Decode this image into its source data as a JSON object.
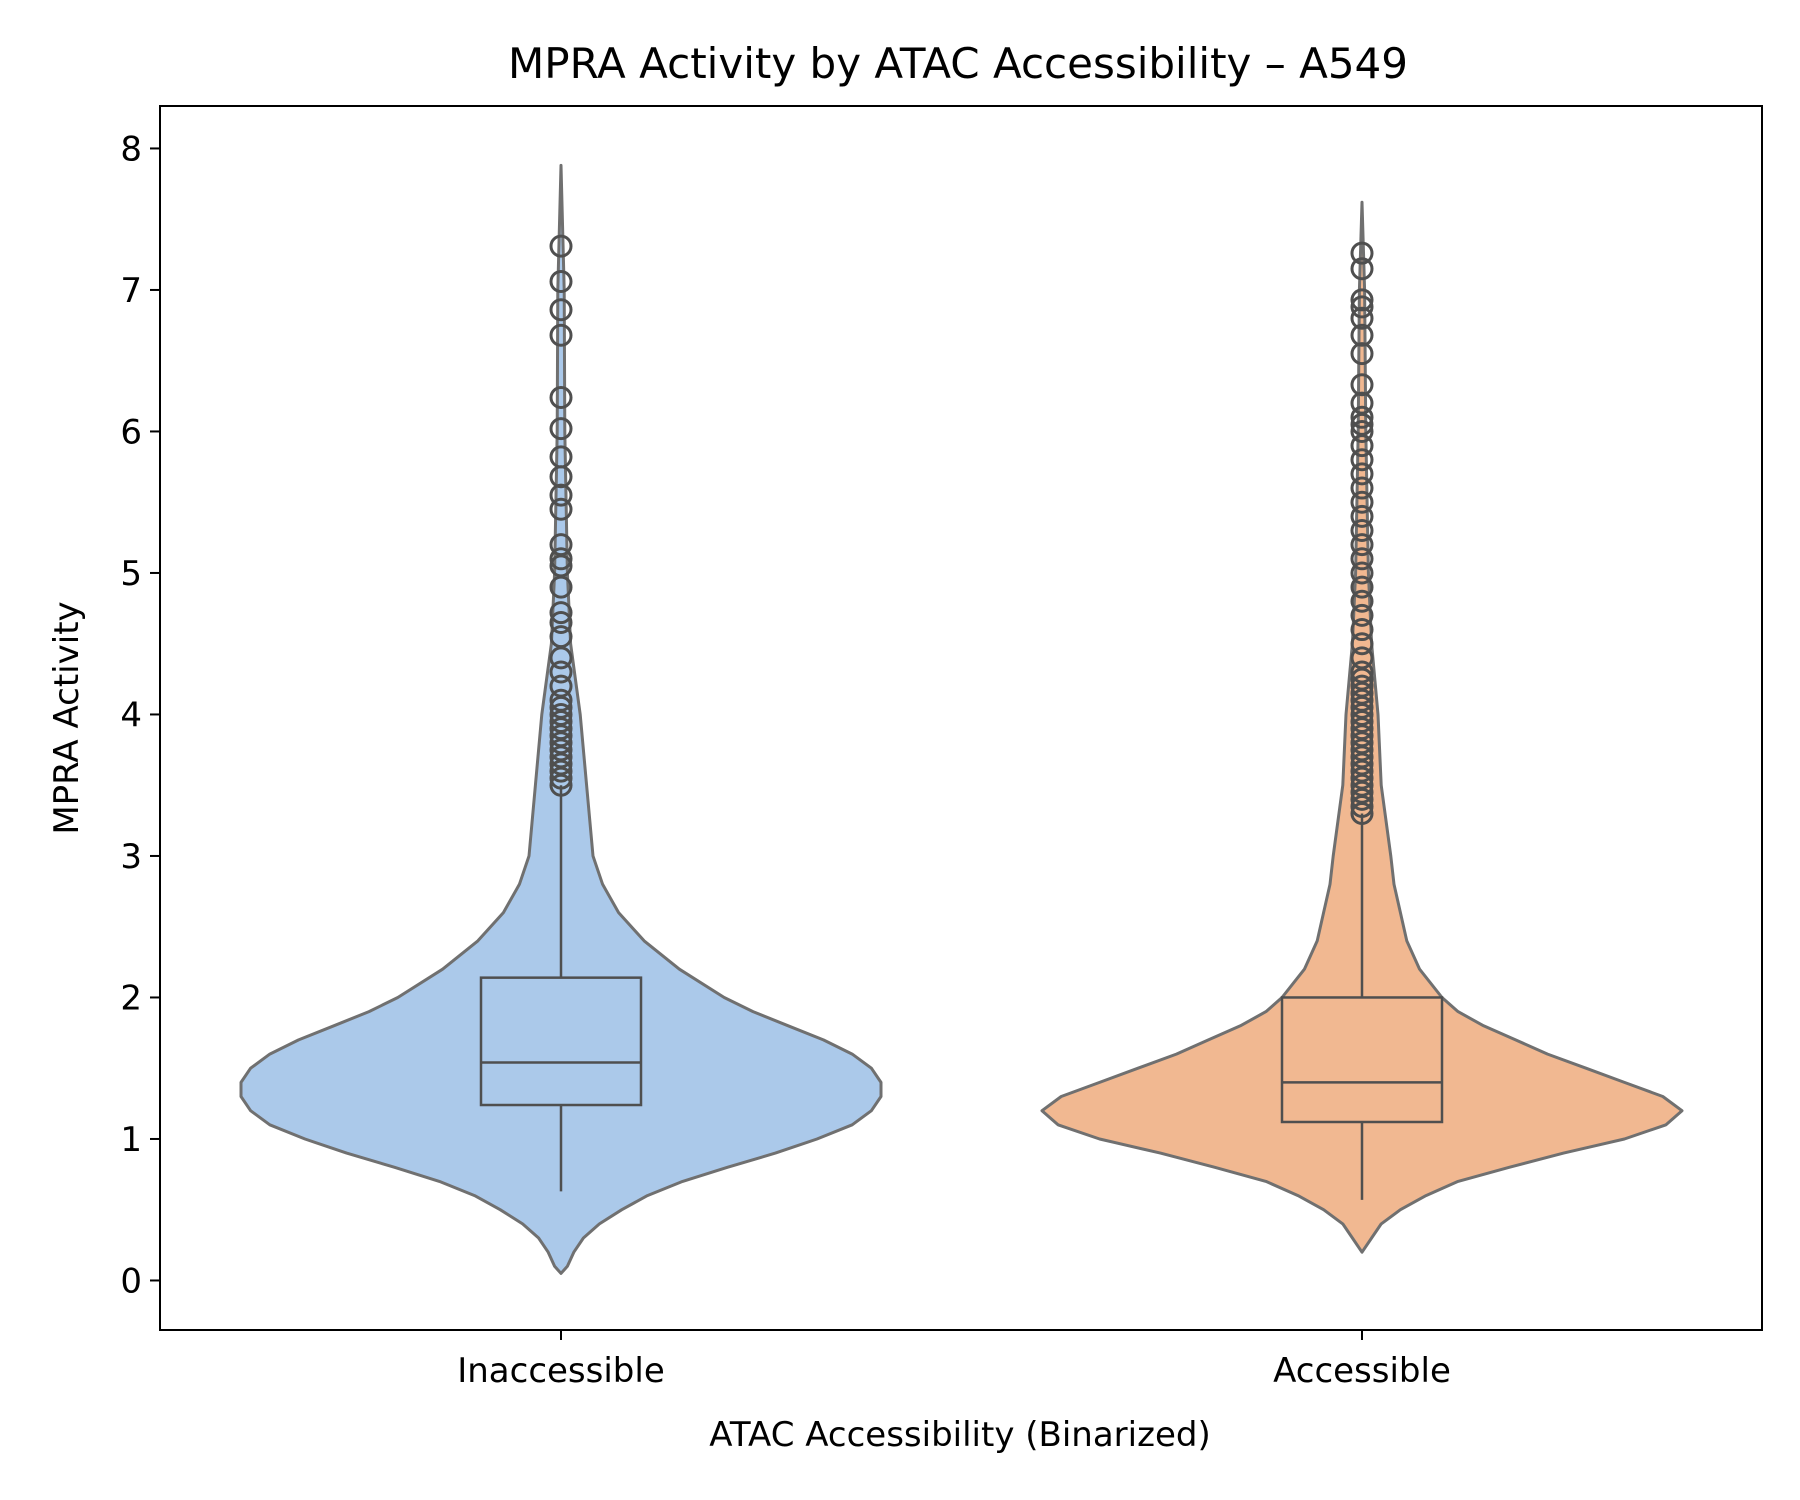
{
  "chart_data": {
    "type": "violin",
    "title": "MPRA Activity by ATAC Accessibility – A549",
    "xlabel": "ATAC Accessibility (Binarized)",
    "ylabel": "MPRA Activity",
    "ylim": [
      -0.35,
      8.3
    ],
    "yticks": [
      0,
      1,
      2,
      3,
      4,
      5,
      6,
      7,
      8
    ],
    "ytick_labels": [
      "0",
      "1",
      "2",
      "3",
      "4",
      "5",
      "6",
      "7",
      "8"
    ],
    "categories": [
      "Inaccessible",
      "Accessible"
    ],
    "grid": false,
    "legend": "none",
    "groups": [
      {
        "category": "Inaccessible",
        "color": "#abc9ea",
        "violin_min": 0.05,
        "violin_max": 7.88,
        "density_profile": [
          [
            0.05,
            0.0
          ],
          [
            0.1,
            0.02
          ],
          [
            0.2,
            0.04
          ],
          [
            0.3,
            0.07
          ],
          [
            0.4,
            0.12
          ],
          [
            0.5,
            0.19
          ],
          [
            0.6,
            0.27
          ],
          [
            0.7,
            0.38
          ],
          [
            0.8,
            0.52
          ],
          [
            0.9,
            0.67
          ],
          [
            1.0,
            0.8
          ],
          [
            1.1,
            0.91
          ],
          [
            1.2,
            0.97
          ],
          [
            1.3,
            1.0
          ],
          [
            1.4,
            1.0
          ],
          [
            1.5,
            0.97
          ],
          [
            1.6,
            0.91
          ],
          [
            1.7,
            0.82
          ],
          [
            1.8,
            0.71
          ],
          [
            1.9,
            0.6
          ],
          [
            2.0,
            0.51
          ],
          [
            2.2,
            0.37
          ],
          [
            2.4,
            0.26
          ],
          [
            2.6,
            0.18
          ],
          [
            2.8,
            0.13
          ],
          [
            3.0,
            0.1
          ],
          [
            3.5,
            0.08
          ],
          [
            4.0,
            0.06
          ],
          [
            4.5,
            0.03
          ],
          [
            5.0,
            0.02
          ],
          [
            6.0,
            0.012
          ],
          [
            7.0,
            0.01
          ],
          [
            7.88,
            0.0
          ]
        ],
        "box": {
          "q1": 1.24,
          "median": 1.54,
          "q3": 2.14,
          "whisker_low": 0.63,
          "whisker_high": 3.5
        },
        "outliers": [
          3.5,
          3.55,
          3.6,
          3.65,
          3.7,
          3.75,
          3.8,
          3.85,
          3.9,
          3.95,
          4.0,
          4.05,
          4.1,
          4.2,
          4.3,
          4.4,
          4.55,
          4.65,
          4.72,
          4.9,
          5.05,
          5.1,
          5.2,
          5.45,
          5.55,
          5.68,
          5.82,
          6.02,
          6.24,
          6.68,
          6.86,
          7.06,
          7.31
        ]
      },
      {
        "category": "Accessible",
        "color": "#f1b891",
        "violin_min": 0.2,
        "violin_max": 7.62,
        "density_profile": [
          [
            0.2,
            0.0
          ],
          [
            0.3,
            0.03
          ],
          [
            0.4,
            0.06
          ],
          [
            0.5,
            0.12
          ],
          [
            0.6,
            0.2
          ],
          [
            0.7,
            0.3
          ],
          [
            0.8,
            0.46
          ],
          [
            0.9,
            0.63
          ],
          [
            1.0,
            0.82
          ],
          [
            1.1,
            0.95
          ],
          [
            1.2,
            1.0
          ],
          [
            1.3,
            0.94
          ],
          [
            1.4,
            0.82
          ],
          [
            1.5,
            0.7
          ],
          [
            1.6,
            0.58
          ],
          [
            1.7,
            0.48
          ],
          [
            1.8,
            0.38
          ],
          [
            1.9,
            0.3
          ],
          [
            2.0,
            0.25
          ],
          [
            2.2,
            0.18
          ],
          [
            2.4,
            0.14
          ],
          [
            2.6,
            0.12
          ],
          [
            2.8,
            0.1
          ],
          [
            3.0,
            0.09
          ],
          [
            3.5,
            0.06
          ],
          [
            4.0,
            0.05
          ],
          [
            4.5,
            0.03
          ],
          [
            5.0,
            0.02
          ],
          [
            6.0,
            0.012
          ],
          [
            7.0,
            0.008
          ],
          [
            7.62,
            0.0
          ]
        ],
        "box": {
          "q1": 1.12,
          "median": 1.4,
          "q3": 2.0,
          "whisker_low": 0.57,
          "whisker_high": 3.3
        },
        "outliers": [
          3.3,
          3.35,
          3.4,
          3.45,
          3.5,
          3.55,
          3.6,
          3.65,
          3.7,
          3.75,
          3.8,
          3.85,
          3.9,
          3.95,
          4.0,
          4.05,
          4.1,
          4.15,
          4.2,
          4.25,
          4.3,
          4.4,
          4.5,
          4.6,
          4.7,
          4.8,
          4.9,
          5.0,
          5.1,
          5.2,
          5.3,
          5.4,
          5.5,
          5.6,
          5.7,
          5.8,
          5.9,
          6.0,
          6.05,
          6.1,
          6.2,
          6.33,
          6.55,
          6.68,
          6.8,
          6.88,
          6.93,
          7.15,
          7.26
        ]
      }
    ]
  }
}
